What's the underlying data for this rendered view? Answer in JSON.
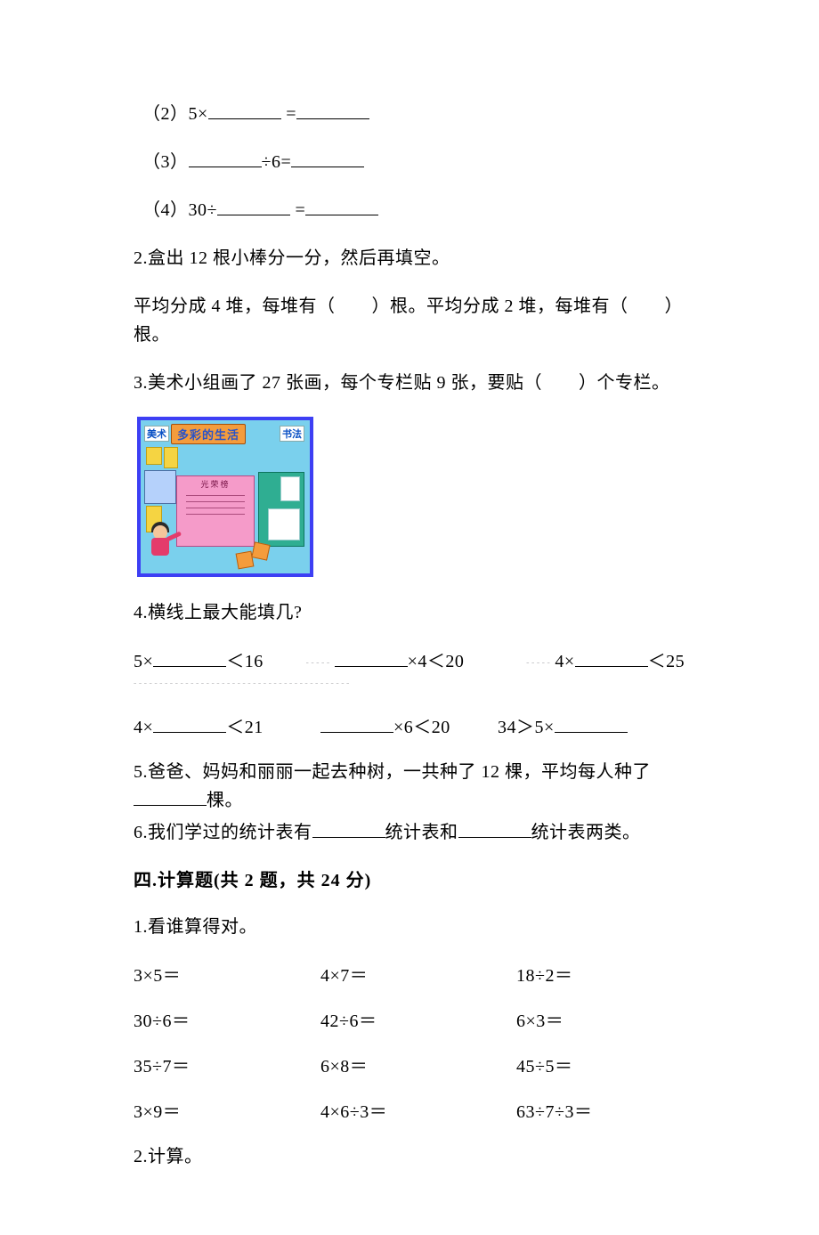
{
  "q1_sub2": {
    "prefix": "（2）5×",
    "equals": " ="
  },
  "q1_sub3": {
    "prefix": "（3）",
    "divider": "÷6="
  },
  "q1_sub4": {
    "prefix": "（4）30÷",
    "equals": " ="
  },
  "q2": "2.盒出 12 根小棒分一分，然后再填空。",
  "q2b": "平均分成 4 堆，每堆有（　　）根。平均分成 2 堆，每堆有（　　）根。",
  "q3": "3.美术小组画了 27 张画，每个专栏贴 9 张，要贴（　　）个专栏。",
  "illus": {
    "banner": "多彩的生活",
    "label_art": "美术",
    "label_cal": "书法",
    "panel_title": "光荣榜"
  },
  "q4": "4.横线上最大能填几?",
  "q4_row1": {
    "a_pre": "5×",
    "a_post": "＜16",
    "b_post": "×4＜20",
    "c_pre": "4×",
    "c_post": "＜25"
  },
  "q4_row2": {
    "a_pre": "4×",
    "a_post": "＜21",
    "b_post": "×6＜20",
    "c_pre": "34＞5×"
  },
  "q5_pre": "5.爸爸、妈妈和丽丽一起去种树，一共种了 12 棵，平均每人种了",
  "q5_post": "棵。",
  "q6_pre": "6.我们学过的统计表有",
  "q6_mid": "统计表和",
  "q6_post": "统计表两类。",
  "section4": "四.计算题(共 2 题，共 24 分)",
  "calc1_title": "1.看谁算得对。",
  "calc1_grid": [
    [
      "3×5＝",
      "4×7＝",
      "18÷2＝"
    ],
    [
      "30÷6＝",
      "42÷6＝",
      "6×3＝"
    ],
    [
      "35÷7＝",
      "6×8＝",
      "45÷5＝"
    ],
    [
      "3×9＝",
      "4×6÷3＝",
      "63÷7÷3＝"
    ]
  ],
  "calc2_title": "2.计算。",
  "dashes_short": "- - - - -",
  "dashes_long": "- - - - - - - - - - - - - - - - - - - - - - - - - - - - - - - - - - - - - - - - - -"
}
